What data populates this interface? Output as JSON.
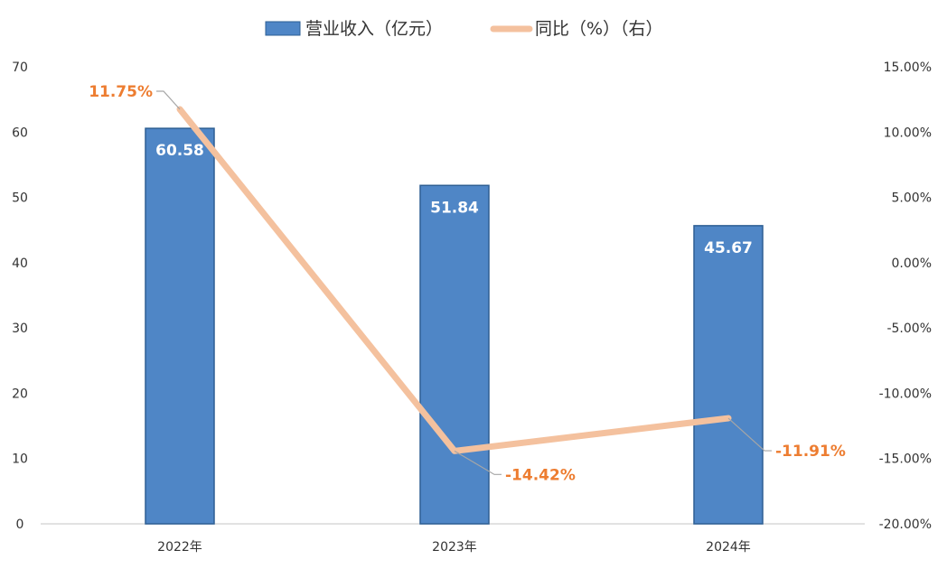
{
  "chart_data": {
    "type": "bar",
    "categories": [
      "2022年",
      "2023年",
      "2024年"
    ],
    "series": [
      {
        "name": "营业收入（亿元）",
        "type": "bar",
        "axis": "left",
        "values": [
          60.58,
          51.84,
          45.67
        ],
        "labels": [
          "60.58",
          "51.84",
          "45.67"
        ],
        "color": "#4f86c6"
      },
      {
        "name": "同比（%）（右）",
        "type": "line",
        "axis": "right",
        "values": [
          11.75,
          -14.42,
          -11.91
        ],
        "labels": [
          "11.75%",
          "-14.42%",
          "-11.91%"
        ],
        "color": "#f4c19e",
        "label_color": "#ed7d31"
      }
    ],
    "y_left": {
      "min": 0,
      "max": 70,
      "ticks": [
        0,
        10,
        20,
        30,
        40,
        50,
        60,
        70
      ],
      "tick_labels": [
        "0",
        "10",
        "20",
        "30",
        "40",
        "50",
        "60",
        "70"
      ]
    },
    "y_right": {
      "min": -20,
      "max": 15,
      "ticks": [
        -20,
        -15,
        -10,
        -5,
        0,
        5,
        10,
        15
      ],
      "tick_labels": [
        "-20.00%",
        "-15.00%",
        "-10.00%",
        "-5.00%",
        "0.00%",
        "5.00%",
        "10.00%",
        "15.00%"
      ]
    },
    "legend": "top-center",
    "grid": false
  }
}
